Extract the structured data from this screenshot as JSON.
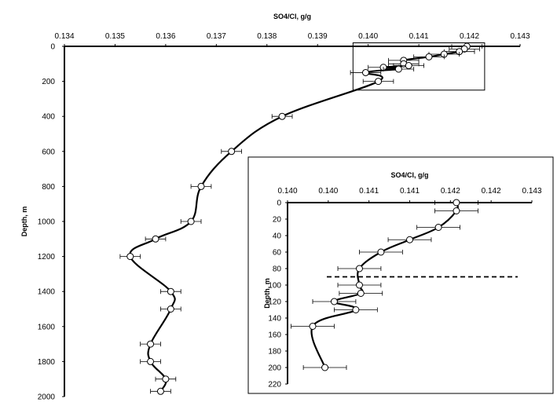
{
  "chart_data": [
    {
      "type": "scatter",
      "title": "",
      "xlabel": "SO4/Cl, g/g",
      "ylabel": "Depth, m",
      "x_axis_position": "top",
      "y_axis_inverted": true,
      "xlim": [
        0.134,
        0.143
      ],
      "ylim": [
        0,
        2000
      ],
      "x_ticks": [
        "0.134",
        "0.135",
        "0.136",
        "0.137",
        "0.138",
        "0.139",
        "0.140",
        "0.141",
        "0.142",
        "0.143"
      ],
      "y_ticks": [
        "0",
        "200",
        "400",
        "600",
        "800",
        "1000",
        "1200",
        "1400",
        "1600",
        "1800",
        "2000"
      ],
      "grid": false,
      "series": [
        {
          "marker": "open-circle",
          "line": "smoothed",
          "error_bars": "horizontal",
          "color": "#000000",
          "points": [
            {
              "x": 0.14195,
              "y": 0,
              "err": 0.0003
            },
            {
              "x": 0.1419,
              "y": 15,
              "err": 0.0003
            },
            {
              "x": 0.1418,
              "y": 30,
              "err": 0.0003
            },
            {
              "x": 0.1415,
              "y": 45,
              "err": 0.0003
            },
            {
              "x": 0.1412,
              "y": 60,
              "err": 0.0003
            },
            {
              "x": 0.1407,
              "y": 80,
              "err": 0.0003
            },
            {
              "x": 0.1407,
              "y": 100,
              "err": 0.0003
            },
            {
              "x": 0.1408,
              "y": 110,
              "err": 0.0003
            },
            {
              "x": 0.1403,
              "y": 120,
              "err": 0.0003
            },
            {
              "x": 0.1406,
              "y": 130,
              "err": 0.0003
            },
            {
              "x": 0.13995,
              "y": 150,
              "err": 0.0003
            },
            {
              "x": 0.1402,
              "y": 200,
              "err": 0.0003
            },
            {
              "x": 0.1383,
              "y": 400,
              "err": 0.0002
            },
            {
              "x": 0.1373,
              "y": 600,
              "err": 0.0002
            },
            {
              "x": 0.1367,
              "y": 800,
              "err": 0.0002
            },
            {
              "x": 0.1365,
              "y": 1000,
              "err": 0.0002
            },
            {
              "x": 0.1358,
              "y": 1100,
              "err": 0.0002
            },
            {
              "x": 0.1353,
              "y": 1200,
              "err": 0.0002
            },
            {
              "x": 0.1361,
              "y": 1400,
              "err": 0.0002
            },
            {
              "x": 0.1361,
              "y": 1500,
              "err": 0.0002
            },
            {
              "x": 0.1357,
              "y": 1700,
              "err": 0.0002
            },
            {
              "x": 0.1357,
              "y": 1800,
              "err": 0.0002
            },
            {
              "x": 0.136,
              "y": 1900,
              "err": 0.0002
            },
            {
              "x": 0.1359,
              "y": 1970,
              "err": 0.0002
            }
          ]
        }
      ],
      "zoom_box": {
        "xlim": [
          0.1397,
          0.1423
        ],
        "ylim": [
          -20,
          250
        ]
      }
    },
    {
      "type": "scatter",
      "title": "",
      "xlabel": "SO4/Cl, g/g",
      "ylabel": "Depth, m",
      "x_axis_position": "top",
      "y_axis_inverted": true,
      "xlim": [
        0.1396,
        0.143
      ],
      "ylim": [
        0,
        220
      ],
      "x_ticks": [
        "0.140",
        "0.140",
        "0.141",
        "0.141",
        "0.142",
        "0.142",
        "0.143"
      ],
      "y_ticks": [
        "0",
        "20",
        "40",
        "60",
        "80",
        "100",
        "120",
        "140",
        "160",
        "180",
        "200",
        "220"
      ],
      "grid": false,
      "dashed_reference_line_depth": 90,
      "series": [
        {
          "marker": "open-circle",
          "line": "smoothed",
          "error_bars": "horizontal",
          "color": "#000000",
          "points": [
            {
              "x": 0.14195,
              "y": 0,
              "err": 0.0003
            },
            {
              "x": 0.14195,
              "y": 10,
              "err": 0.0003
            },
            {
              "x": 0.1417,
              "y": 30,
              "err": 0.0003
            },
            {
              "x": 0.1413,
              "y": 45,
              "err": 0.0003
            },
            {
              "x": 0.1409,
              "y": 60,
              "err": 0.0003
            },
            {
              "x": 0.1406,
              "y": 80,
              "err": 0.0003
            },
            {
              "x": 0.1406,
              "y": 100,
              "err": 0.0003
            },
            {
              "x": 0.14062,
              "y": 110,
              "err": 0.0003
            },
            {
              "x": 0.14025,
              "y": 120,
              "err": 0.0003
            },
            {
              "x": 0.14055,
              "y": 130,
              "err": 0.0003
            },
            {
              "x": 0.13995,
              "y": 150,
              "err": 0.0003
            },
            {
              "x": 0.14012,
              "y": 200,
              "err": 0.0003
            }
          ]
        }
      ]
    }
  ]
}
